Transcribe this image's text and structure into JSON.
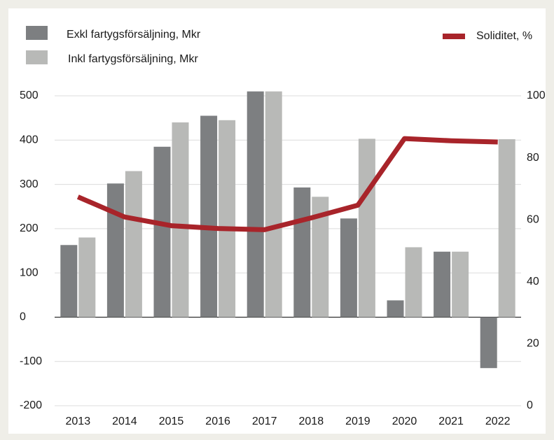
{
  "chart_data": {
    "type": "bar",
    "categories": [
      "2013",
      "2014",
      "2015",
      "2016",
      "2017",
      "2018",
      "2019",
      "2020",
      "2021",
      "2022"
    ],
    "series": [
      {
        "name": "Exkl fartygsförsäljning, Mkr",
        "color": "#7d7f81",
        "values": [
          163,
          302,
          385,
          455,
          510,
          293,
          223,
          38,
          148,
          -115
        ]
      },
      {
        "name": "Inkl fartygsförsäljning, Mkr",
        "color": "#b8b9b7",
        "values": [
          180,
          330,
          440,
          445,
          510,
          272,
          403,
          158,
          148,
          402
        ]
      },
      {
        "name": "Soliditet, %",
        "color": "#a8242a",
        "type": "line",
        "axis": "y2",
        "values": [
          67.4,
          60.9,
          58.1,
          57.2,
          56.8,
          60.6,
          64.7,
          86.2,
          85.5,
          85.1
        ]
      }
    ],
    "ylim": [
      -200,
      500
    ],
    "yticks": [
      -200,
      -100,
      0,
      100,
      200,
      300,
      400,
      500
    ],
    "y2lim": [
      0,
      100
    ],
    "y2ticks": [
      0,
      20,
      40,
      60,
      80,
      100
    ],
    "grid": true
  }
}
